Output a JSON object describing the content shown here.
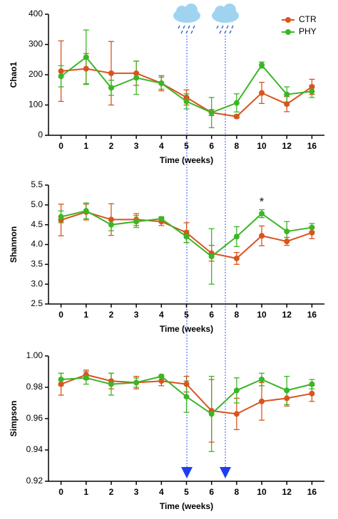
{
  "chart_data": [
    {
      "type": "line",
      "ylabel": "Chao1",
      "xlabel": "Time (weeks)",
      "categories": [
        "0",
        "1",
        "2",
        "3",
        "4",
        "5",
        "6",
        "8",
        "10",
        "12",
        "16"
      ],
      "ylim": [
        0,
        400
      ],
      "yticks": [
        0,
        100,
        200,
        300,
        400
      ],
      "legend": "upper right",
      "series": [
        {
          "name": "CTR",
          "color": "#d9541e",
          "values": [
            212,
            220,
            205,
            205,
            172,
            125,
            75,
            62,
            140,
            103,
            160
          ],
          "errors": [
            100,
            50,
            105,
            40,
            25,
            25,
            10,
            5,
            35,
            25,
            25
          ]
        },
        {
          "name": "PHY",
          "color": "#3cb526",
          "values": [
            195,
            258,
            157,
            190,
            172,
            112,
            75,
            107,
            232,
            135,
            145
          ],
          "errors": [
            35,
            90,
            25,
            55,
            20,
            25,
            50,
            30,
            10,
            25,
            20
          ]
        }
      ]
    },
    {
      "type": "line",
      "ylabel": "Shannon",
      "xlabel": "Time (weeks)",
      "categories": [
        "0",
        "1",
        "2",
        "3",
        "4",
        "5",
        "6",
        "8",
        "10",
        "12",
        "16"
      ],
      "ylim": [
        2.5,
        5.5
      ],
      "yticks": [
        {
          "value": 2.5,
          "label": "2.5"
        },
        {
          "value": 3,
          "label": "3.0"
        },
        {
          "value": 3.5,
          "label": "3.5"
        },
        {
          "value": 4,
          "label": "4.0"
        },
        {
          "value": 4.5,
          "label": "4.5"
        },
        {
          "value": 5,
          "label": "5.0"
        },
        {
          "value": 5.5,
          "label": "5.5"
        }
      ],
      "annotations": [
        {
          "text": "*",
          "x": "10"
        }
      ],
      "series": [
        {
          "color": "#d9541e",
          "values": [
            4.62,
            4.82,
            4.63,
            4.63,
            4.58,
            4.3,
            3.78,
            3.65,
            4.22,
            4.08,
            4.3
          ],
          "errors": [
            0.4,
            0.2,
            0.4,
            0.15,
            0.1,
            0.25,
            0.2,
            0.15,
            0.25,
            0.1,
            0.15
          ]
        },
        {
          "color": "#3cb526",
          "values": [
            4.7,
            4.85,
            4.5,
            4.58,
            4.65,
            4.2,
            3.7,
            4.2,
            4.78,
            4.33,
            4.43
          ],
          "errors": [
            0.15,
            0.2,
            0.15,
            0.15,
            0.05,
            0.15,
            0.7,
            0.25,
            0.1,
            0.25,
            0.1
          ]
        }
      ]
    },
    {
      "type": "line",
      "ylabel": "Simpson",
      "xlabel": "Time (weeks)",
      "categories": [
        "0",
        "1",
        "2",
        "3",
        "4",
        "5",
        "6",
        "8",
        "10",
        "12",
        "16"
      ],
      "ylim": [
        0.92,
        1.0
      ],
      "yticks": [
        {
          "value": 0.92,
          "label": "0.92"
        },
        {
          "value": 0.94,
          "label": "0.94"
        },
        {
          "value": 0.96,
          "label": "0.96"
        },
        {
          "value": 0.98,
          "label": "0.98"
        },
        {
          "value": 1.0,
          "label": "1.00"
        }
      ],
      "series": [
        {
          "color": "#d9541e",
          "values": [
            0.982,
            0.988,
            0.984,
            0.983,
            0.984,
            0.982,
            0.965,
            0.963,
            0.971,
            0.973,
            0.976
          ],
          "errors": [
            0.007,
            0.003,
            0.005,
            0.004,
            0.003,
            0.005,
            0.02,
            0.01,
            0.012,
            0.005,
            0.005
          ]
        },
        {
          "color": "#3cb526",
          "values": [
            0.985,
            0.986,
            0.982,
            0.983,
            0.987,
            0.974,
            0.963,
            0.978,
            0.985,
            0.978,
            0.982
          ],
          "errors": [
            0.004,
            0.004,
            0.007,
            0.003,
            0.001,
            0.01,
            0.024,
            0.008,
            0.004,
            0.009,
            0.003
          ]
        }
      ]
    }
  ]
}
